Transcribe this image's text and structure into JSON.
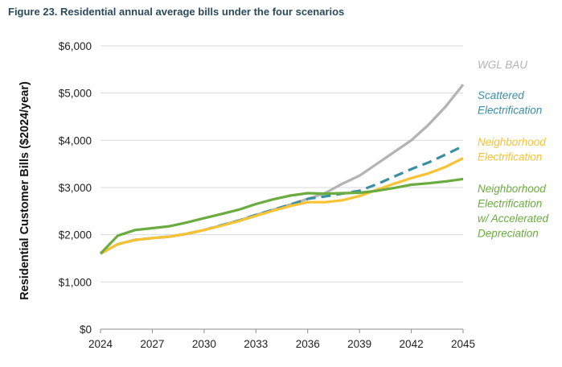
{
  "figure_title": "Figure 23. Residential annual average bills under the four scenarios",
  "chart_data": {
    "type": "line",
    "title": "Figure 23. Residential annual average bills under the four scenarios",
    "xlabel": "",
    "ylabel": "Residential Customer Bills ($2024/year)",
    "xlim": [
      2024,
      2045
    ],
    "ylim": [
      0,
      6000
    ],
    "x_ticks": [
      2024,
      2027,
      2030,
      2033,
      2036,
      2039,
      2042,
      2045
    ],
    "x_tick_labels": [
      "2024",
      "2027",
      "2030",
      "2033",
      "2036",
      "2039",
      "2042",
      "2045"
    ],
    "y_ticks": [
      0,
      1000,
      2000,
      3000,
      4000,
      5000,
      6000
    ],
    "y_tick_labels": [
      "$0",
      "$1,000",
      "$2,000",
      "$3,000",
      "$4,000",
      "$5,000",
      "$6,000"
    ],
    "grid": "horizontal",
    "legend": "right",
    "x": [
      2024,
      2025,
      2026,
      2027,
      2028,
      2029,
      2030,
      2031,
      2032,
      2033,
      2034,
      2035,
      2036,
      2037,
      2038,
      2039,
      2040,
      2041,
      2042,
      2043,
      2044,
      2045
    ],
    "series": [
      {
        "name": "WGL BAU",
        "label_lines": [
          "WGL BAU"
        ],
        "color": "#b3b3b3",
        "dash": "solid",
        "values": [
          1600,
          1800,
          1890,
          1930,
          1960,
          2020,
          2100,
          2200,
          2300,
          2420,
          2530,
          2640,
          2760,
          2880,
          3080,
          3250,
          3500,
          3750,
          4000,
          4330,
          4720,
          5180
        ]
      },
      {
        "name": "Scattered Electrification",
        "label_lines": [
          "Scattered",
          "Electrification"
        ],
        "color": "#3a8fa3",
        "dash": "dashed",
        "values": [
          1600,
          1800,
          1890,
          1930,
          1960,
          2020,
          2100,
          2200,
          2300,
          2420,
          2530,
          2640,
          2760,
          2810,
          2870,
          2930,
          3070,
          3230,
          3390,
          3530,
          3700,
          3880
        ]
      },
      {
        "name": "Neighborhood Electrification",
        "label_lines": [
          "Neighborhood",
          "Electrification"
        ],
        "color": "#f7c234",
        "dash": "solid",
        "values": [
          1600,
          1800,
          1890,
          1930,
          1960,
          2020,
          2100,
          2190,
          2290,
          2400,
          2510,
          2610,
          2690,
          2690,
          2730,
          2820,
          2950,
          3080,
          3200,
          3300,
          3440,
          3620
        ]
      },
      {
        "name": "Neighborhood Electrification w/ Accelerated Depreciation",
        "label_lines": [
          "Neighborhood",
          "Electrification",
          "w/ Accelerated",
          "Depreciation"
        ],
        "color": "#6aac3f",
        "dash": "solid",
        "values": [
          1600,
          1980,
          2100,
          2140,
          2180,
          2260,
          2350,
          2440,
          2530,
          2650,
          2750,
          2830,
          2880,
          2870,
          2880,
          2890,
          2930,
          2990,
          3060,
          3090,
          3130,
          3180
        ]
      }
    ]
  }
}
